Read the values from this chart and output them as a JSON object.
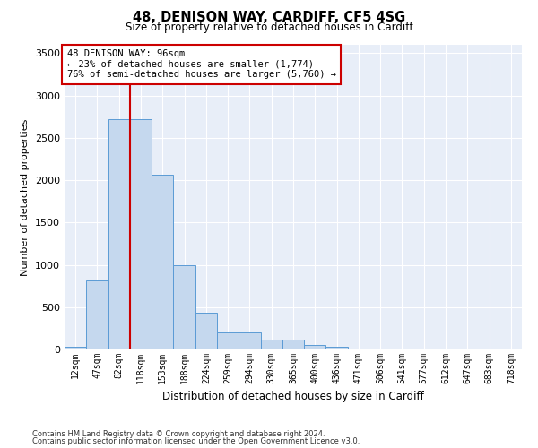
{
  "title1": "48, DENISON WAY, CARDIFF, CF5 4SG",
  "title2": "Size of property relative to detached houses in Cardiff",
  "xlabel": "Distribution of detached houses by size in Cardiff",
  "ylabel": "Number of detached properties",
  "categories": [
    "12sqm",
    "47sqm",
    "82sqm",
    "118sqm",
    "153sqm",
    "188sqm",
    "224sqm",
    "259sqm",
    "294sqm",
    "330sqm",
    "365sqm",
    "400sqm",
    "436sqm",
    "471sqm",
    "506sqm",
    "541sqm",
    "577sqm",
    "612sqm",
    "647sqm",
    "683sqm",
    "718sqm"
  ],
  "bar_values": [
    30,
    820,
    2720,
    2720,
    2060,
    1000,
    430,
    200,
    200,
    120,
    120,
    50,
    30,
    10,
    5,
    2,
    2,
    0,
    0,
    0,
    0
  ],
  "bar_color": "#c5d8ee",
  "bar_edge_color": "#5b9bd5",
  "bg_color": "#e8eef8",
  "grid_color": "#ffffff",
  "vline_color": "#cc0000",
  "annotation_text": "48 DENISON WAY: 96sqm\n← 23% of detached houses are smaller (1,774)\n76% of semi-detached houses are larger (5,760) →",
  "annotation_box_color": "#ffffff",
  "annotation_edge_color": "#cc0000",
  "ylim": [
    0,
    3600
  ],
  "yticks": [
    0,
    500,
    1000,
    1500,
    2000,
    2500,
    3000,
    3500
  ],
  "footer1": "Contains HM Land Registry data © Crown copyright and database right 2024.",
  "footer2": "Contains public sector information licensed under the Open Government Licence v3.0."
}
